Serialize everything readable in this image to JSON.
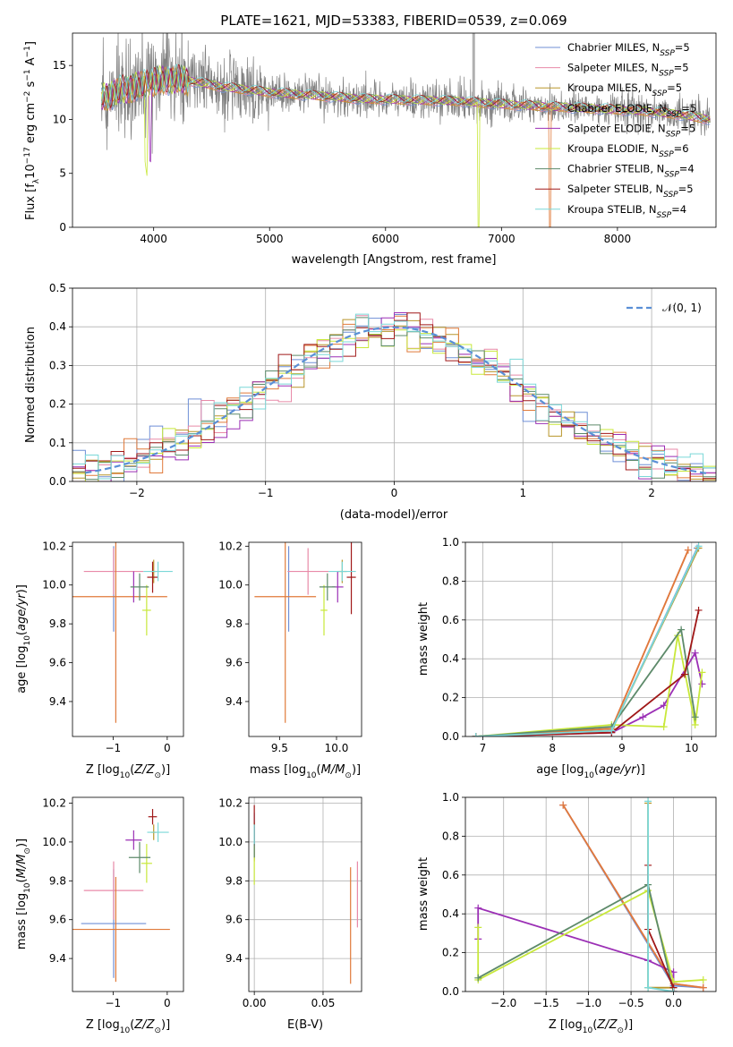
{
  "figure_title": "PLATE=1621, MJD=53383, FIBERID=0539, z=0.069",
  "colors": {
    "Chabrier MILES": "#6f8fd6",
    "Salpeter MILES": "#e88aa8",
    "Kroupa MILES": "#b8952a",
    "Chabrier ELODIE": "#e07a3a",
    "Salpeter ELODIE": "#9b2fb5",
    "Kroupa ELODIE": "#c8e83a",
    "Chabrier STELIB": "#5d8a6a",
    "Salpeter STELIB": "#a01818",
    "Kroupa STELIB": "#7ad8d8",
    "data": "#808080",
    "gaussian": "#5a8fd6"
  },
  "chart_data": [
    {
      "id": "spectrum",
      "type": "line",
      "title": "PLATE=1621, MJD=53383, FIBERID=0539, z=0.069",
      "xlabel": "wavelength [Angstrom, rest frame]",
      "ylabel": "Flux [f_λ10^-17 erg cm^-2 s^-1 A^-1]",
      "xlim": [
        3300,
        8850
      ],
      "ylim": [
        0,
        18
      ],
      "xticks": [
        4000,
        5000,
        6000,
        7000,
        8000
      ],
      "yticks": [
        0,
        5,
        10,
        15
      ],
      "grid": false,
      "legend_position": "top-right",
      "legend": [
        {
          "label": "Chabrier MILES, N",
          "sub": "SSP",
          "suffix": "=5",
          "series": "Chabrier MILES"
        },
        {
          "label": "Salpeter MILES, N",
          "sub": "SSP",
          "suffix": "=5",
          "series": "Salpeter MILES"
        },
        {
          "label": "Kroupa MILES, N",
          "sub": "SSP",
          "suffix": "=5",
          "series": "Kroupa MILES"
        },
        {
          "label": "Chabrier ELODIE, N",
          "sub": "SSP",
          "suffix": "=5",
          "series": "Chabrier ELODIE"
        },
        {
          "label": "Salpeter ELODIE, N",
          "sub": "SSP",
          "suffix": "=5",
          "series": "Salpeter ELODIE"
        },
        {
          "label": "Kroupa ELODIE, N",
          "sub": "SSP",
          "suffix": "=6",
          "series": "Kroupa ELODIE"
        },
        {
          "label": "Chabrier STELIB, N",
          "sub": "SSP",
          "suffix": "=4",
          "series": "Chabrier STELIB"
        },
        {
          "label": "Salpeter STELIB, N",
          "sub": "SSP",
          "suffix": "=5",
          "series": "Salpeter STELIB"
        },
        {
          "label": "Kroupa STELIB, N",
          "sub": "SSP",
          "suffix": "=4",
          "series": "Kroupa STELIB"
        }
      ],
      "continuum": {
        "x": [
          3550,
          3700,
          3900,
          4100,
          4300,
          4600,
          5000,
          5400,
          5800,
          6200,
          6600,
          7000,
          7400,
          7800,
          8200,
          8500,
          8800
        ],
        "y": [
          12.0,
          12.6,
          13.2,
          13.7,
          13.6,
          13.0,
          12.5,
          12.2,
          11.9,
          11.8,
          11.7,
          11.4,
          11.2,
          11.0,
          10.8,
          10.5,
          10.0
        ]
      },
      "noise_amplitude": 1.2,
      "absorption_features": [
        {
          "x": 3934,
          "depth": 7.5,
          "series": "Kroupa ELODIE"
        },
        {
          "x": 3969,
          "depth": 6.0,
          "series": "Salpeter ELODIE"
        },
        {
          "x": 6800,
          "depth": 12.0,
          "series": "Kroupa ELODIE"
        },
        {
          "x": 7420,
          "depth": 12.0,
          "series": "Chabrier ELODIE"
        }
      ]
    },
    {
      "id": "residuals",
      "type": "line",
      "xlabel": "(data-model)/error",
      "ylabel": "Normed distribution",
      "xlim": [
        -2.5,
        2.5
      ],
      "ylim": [
        0,
        0.5
      ],
      "xticks": [
        -2,
        -1,
        0,
        1,
        2
      ],
      "yticks": [
        0.0,
        0.1,
        0.2,
        0.3,
        0.4,
        0.5
      ],
      "grid": true,
      "legend_position": "top-right",
      "legend_label": "𝒩(0, 1)",
      "bin_width": 0.1,
      "bin_start": -2.5,
      "histogram_series": [
        "Chabrier MILES",
        "Salpeter MILES",
        "Kroupa MILES",
        "Chabrier ELODIE",
        "Salpeter ELODIE",
        "Kroupa ELODIE",
        "Chabrier STELIB",
        "Salpeter STELIB",
        "Kroupa STELIB"
      ]
    },
    {
      "id": "age-vs-Z",
      "type": "scatter",
      "xlabel": "Z [log10(Z/Z⊙)]",
      "ylabel": "age  [log10(age/yr)]",
      "xlim": [
        -1.75,
        0.3
      ],
      "ylim": [
        9.22,
        10.22
      ],
      "xticks": [
        -1,
        0
      ],
      "yticks": [
        9.4,
        9.6,
        9.8,
        10.0,
        10.2
      ],
      "grid": false,
      "points": [
        {
          "series": "Chabrier MILES",
          "x": -0.99,
          "y": 9.98,
          "xerr": 0.0,
          "yerr": 0.22
        },
        {
          "series": "Salpeter MILES",
          "x": -0.99,
          "y": 10.07,
          "xerr": 0.55,
          "yerr": 0.12
        },
        {
          "series": "Kroupa MILES",
          "x": -0.25,
          "y": 10.07,
          "xerr": 0.05,
          "yerr": 0.06
        },
        {
          "series": "Chabrier ELODIE",
          "x": -0.95,
          "y": 9.94,
          "xerr": 0.95,
          "yerr": 0.65
        },
        {
          "series": "Salpeter ELODIE",
          "x": -0.62,
          "y": 9.99,
          "xerr": 0.0,
          "yerr": 0.08
        },
        {
          "series": "Kroupa ELODIE",
          "x": -0.38,
          "y": 9.87,
          "xerr": 0.08,
          "yerr": 0.13
        },
        {
          "series": "Chabrier STELIB",
          "x": -0.51,
          "y": 9.99,
          "xerr": 0.17,
          "yerr": 0.07
        },
        {
          "series": "Salpeter STELIB",
          "x": -0.27,
          "y": 10.04,
          "xerr": 0.1,
          "yerr": 0.08
        },
        {
          "series": "Kroupa STELIB",
          "x": -0.17,
          "y": 10.07,
          "xerr": 0.27,
          "yerr": 0.05
        }
      ]
    },
    {
      "id": "age-vs-mass",
      "type": "scatter",
      "xlabel": "mass [log10(M/M⊙)]",
      "ylabel": "",
      "xlim": [
        9.23,
        10.22
      ],
      "ylim": [
        9.22,
        10.22
      ],
      "xticks": [
        9.5,
        10.0
      ],
      "yticks": [
        9.4,
        9.6,
        9.8,
        10.0,
        10.2
      ],
      "grid": false,
      "points": [
        {
          "series": "Chabrier MILES",
          "x": 9.58,
          "y": 9.98,
          "xerr": 0.0,
          "yerr": 0.22
        },
        {
          "series": "Salpeter MILES",
          "x": 9.75,
          "y": 10.07,
          "xerr": 0.18,
          "yerr": 0.12
        },
        {
          "series": "Kroupa MILES",
          "x": 10.05,
          "y": 10.07,
          "xerr": 0.04,
          "yerr": 0.06
        },
        {
          "series": "Chabrier ELODIE",
          "x": 9.55,
          "y": 9.94,
          "xerr": 0.27,
          "yerr": 0.65
        },
        {
          "series": "Salpeter ELODIE",
          "x": 10.01,
          "y": 9.99,
          "xerr": 0.05,
          "yerr": 0.08
        },
        {
          "series": "Kroupa ELODIE",
          "x": 9.89,
          "y": 9.87,
          "xerr": 0.03,
          "yerr": 0.13
        },
        {
          "series": "Chabrier STELIB",
          "x": 9.92,
          "y": 9.99,
          "xerr": 0.07,
          "yerr": 0.07
        },
        {
          "series": "Salpeter STELIB",
          "x": 10.13,
          "y": 10.04,
          "xerr": 0.04,
          "yerr": 0.19
        },
        {
          "series": "Kroupa STELIB",
          "x": 10.05,
          "y": 10.07,
          "xerr": 0.12,
          "yerr": 0.05
        }
      ]
    },
    {
      "id": "mass-weight-vs-age",
      "type": "line",
      "xlabel": "age  [log10(age/yr)]",
      "ylabel": "mass weight",
      "xlim": [
        6.75,
        10.35
      ],
      "ylim": [
        0,
        1.0
      ],
      "xticks": [
        7,
        8,
        9,
        10
      ],
      "yticks": [
        0.0,
        0.2,
        0.4,
        0.6,
        0.8,
        1.0
      ],
      "grid": true,
      "series": [
        {
          "name": "Chabrier MILES",
          "x": [
            6.9,
            8.85,
            10.08
          ],
          "y": [
            0.0,
            0.03,
            0.97
          ]
        },
        {
          "name": "Salpeter MILES",
          "x": [
            6.9,
            8.85,
            9.95
          ],
          "y": [
            0.0,
            0.04,
            0.96
          ]
        },
        {
          "name": "Kroupa MILES",
          "x": [
            6.9,
            8.85,
            10.1
          ],
          "y": [
            0.0,
            0.03,
            0.97
          ]
        },
        {
          "name": "Chabrier ELODIE",
          "x": [
            6.9,
            8.85,
            9.95
          ],
          "y": [
            0.0,
            0.04,
            0.96
          ]
        },
        {
          "name": "Salpeter ELODIE",
          "x": [
            6.9,
            8.85,
            9.3,
            9.6,
            10.05,
            10.15
          ],
          "y": [
            0.0,
            0.02,
            0.1,
            0.16,
            0.43,
            0.27
          ]
        },
        {
          "name": "Kroupa ELODIE",
          "x": [
            6.9,
            8.85,
            9.6,
            9.8,
            10.05,
            10.15
          ],
          "y": [
            0.0,
            0.06,
            0.05,
            0.52,
            0.06,
            0.33
          ]
        },
        {
          "name": "Chabrier STELIB",
          "x": [
            6.9,
            8.85,
            9.85,
            10.05
          ],
          "y": [
            0.0,
            0.05,
            0.55,
            0.1
          ]
        },
        {
          "name": "Salpeter STELIB",
          "x": [
            6.9,
            8.85,
            9.9,
            10.1
          ],
          "y": [
            0.0,
            0.02,
            0.32,
            0.65
          ]
        },
        {
          "name": "Kroupa STELIB",
          "x": [
            6.9,
            8.85,
            10.1
          ],
          "y": [
            0.0,
            0.03,
            0.98
          ]
        }
      ]
    },
    {
      "id": "mass-vs-Z",
      "type": "scatter",
      "xlabel": "Z [log10(Z/Z⊙)]",
      "ylabel": "mass [log10(M/M⊙)]",
      "xlim": [
        -1.75,
        0.3
      ],
      "ylim": [
        9.23,
        10.23
      ],
      "xticks": [
        -1,
        0
      ],
      "yticks": [
        9.4,
        9.6,
        9.8,
        10.0,
        10.2
      ],
      "grid": false,
      "points": [
        {
          "series": "Chabrier MILES",
          "x": -0.99,
          "y": 9.58,
          "xerr": 0.6,
          "yerr": 0.28
        },
        {
          "series": "Salpeter MILES",
          "x": -0.99,
          "y": 9.75,
          "xerr": 0.55,
          "yerr": 0.15
        },
        {
          "series": "Kroupa MILES",
          "x": -0.25,
          "y": 10.05,
          "xerr": 0.05,
          "yerr": 0.04
        },
        {
          "series": "Chabrier ELODIE",
          "x": -0.95,
          "y": 9.55,
          "xerr": 1.0,
          "yerr": 0.27
        },
        {
          "series": "Salpeter ELODIE",
          "x": -0.62,
          "y": 10.01,
          "xerr": 0.15,
          "yerr": 0.05
        },
        {
          "series": "Kroupa ELODIE",
          "x": -0.38,
          "y": 9.89,
          "xerr": 0.1,
          "yerr": 0.1
        },
        {
          "series": "Chabrier STELIB",
          "x": -0.51,
          "y": 9.92,
          "xerr": 0.2,
          "yerr": 0.08
        },
        {
          "series": "Salpeter STELIB",
          "x": -0.27,
          "y": 10.13,
          "xerr": 0.08,
          "yerr": 0.04
        },
        {
          "series": "Kroupa STELIB",
          "x": -0.17,
          "y": 10.05,
          "xerr": 0.2,
          "yerr": 0.05
        }
      ]
    },
    {
      "id": "mass-vs-ebv",
      "type": "scatter",
      "xlabel": "E(B-V)",
      "ylabel": "",
      "xlim": [
        -0.004,
        0.078
      ],
      "ylim": [
        9.23,
        10.23
      ],
      "xticks": [
        0.0,
        0.05
      ],
      "yticks": [
        9.4,
        9.6,
        9.8,
        10.0,
        10.2
      ],
      "grid": true,
      "points": [
        {
          "series": "Chabrier MILES",
          "x": 0.0,
          "y": 10.03,
          "xerr": 0.0,
          "yerr": 0.12
        },
        {
          "series": "Salpeter MILES",
          "x": 0.075,
          "y": 9.73,
          "xerr": 0.0,
          "yerr": 0.17
        },
        {
          "series": "Kroupa MILES",
          "x": 0.0,
          "y": 10.0,
          "xerr": 0.0,
          "yerr": 0.1
        },
        {
          "series": "Chabrier ELODIE",
          "x": 0.07,
          "y": 9.57,
          "xerr": 0.0,
          "yerr": 0.3
        },
        {
          "series": "Salpeter ELODIE",
          "x": 0.0,
          "y": 10.0,
          "xerr": 0.0,
          "yerr": 0.08
        },
        {
          "series": "Kroupa ELODIE",
          "x": 0.0,
          "y": 9.88,
          "xerr": 0.0,
          "yerr": 0.1
        },
        {
          "series": "Chabrier STELIB",
          "x": 0.0,
          "y": 9.99,
          "xerr": 0.0,
          "yerr": 0.07
        },
        {
          "series": "Salpeter STELIB",
          "x": 0.0,
          "y": 10.1,
          "xerr": 0.0,
          "yerr": 0.09
        },
        {
          "series": "Kroupa STELIB",
          "x": 0.0,
          "y": 10.04,
          "xerr": 0.0,
          "yerr": 0.05
        }
      ]
    },
    {
      "id": "mass-weight-vs-Z",
      "type": "line",
      "xlabel": "Z [log10(Z/Z⊙)]",
      "ylabel": "mass weight",
      "xlim": [
        -2.45,
        0.5
      ],
      "ylim": [
        0,
        1.0
      ],
      "xticks": [
        -2.0,
        -1.5,
        -1.0,
        -0.5,
        0.0
      ],
      "yticks": [
        0.0,
        0.2,
        0.4,
        0.6,
        0.8,
        1.0
      ],
      "grid": true,
      "series": [
        {
          "name": "Chabrier MILES",
          "x": [
            -1.3,
            0.0,
            0.35
          ],
          "y": [
            0.96,
            0.03,
            0.02
          ]
        },
        {
          "name": "Salpeter MILES",
          "x": [
            -1.3,
            0.0,
            0.35
          ],
          "y": [
            0.96,
            0.04,
            0.02
          ]
        },
        {
          "name": "Kroupa MILES",
          "x": [
            -0.3,
            -0.3,
            0.0
          ],
          "y": [
            0.97,
            0.02,
            0.02
          ]
        },
        {
          "name": "Chabrier ELODIE",
          "x": [
            -1.3,
            0.0,
            0.35
          ],
          "y": [
            0.96,
            0.04,
            0.02
          ]
        },
        {
          "name": "Salpeter ELODIE",
          "x": [
            -2.3,
            -2.3,
            -0.3,
            0.0,
            0.0
          ],
          "y": [
            0.27,
            0.43,
            0.16,
            0.1,
            0.0
          ]
        },
        {
          "name": "Kroupa ELODIE",
          "x": [
            -2.3,
            -2.3,
            -0.3,
            0.0,
            0.35
          ],
          "y": [
            0.33,
            0.06,
            0.52,
            0.05,
            0.06
          ]
        },
        {
          "name": "Chabrier STELIB",
          "x": [
            -2.3,
            -0.3,
            0.0
          ],
          "y": [
            0.07,
            0.55,
            0.0
          ]
        },
        {
          "name": "Salpeter STELIB",
          "x": [
            -0.3,
            -0.3,
            0.0,
            0.0
          ],
          "y": [
            0.65,
            0.32,
            0.02,
            0.0
          ]
        },
        {
          "name": "Kroupa STELIB",
          "x": [
            -0.3,
            -0.3,
            0.0
          ],
          "y": [
            0.98,
            0.02,
            0.0
          ]
        }
      ]
    }
  ]
}
